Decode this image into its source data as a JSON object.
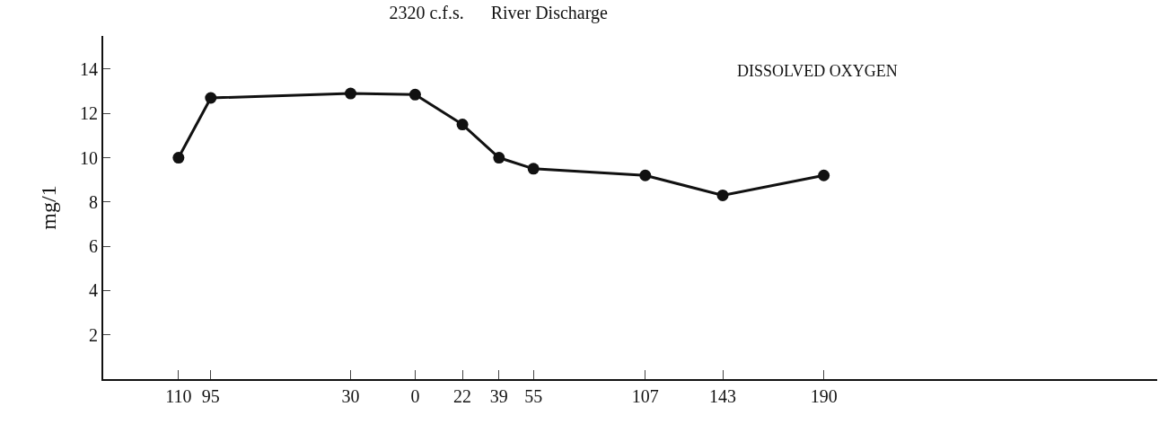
{
  "chart_data": {
    "type": "line",
    "title": "2320 c.f.s.      River Discharge",
    "ylabel": "mg/1",
    "annotations": [
      "DISSOLVED OXYGEN"
    ],
    "x": [
      -110,
      -95,
      -30,
      0,
      22,
      39,
      55,
      107,
      143,
      190
    ],
    "series": [
      {
        "color": "#111111",
        "values": [
          10,
          12.7,
          12.9,
          12.85,
          11.5,
          10,
          9.5,
          9.2,
          8.3,
          9.2
        ]
      }
    ],
    "xlim": [
      -145,
      345
    ],
    "xticks": [
      {
        "value": -110,
        "label": "110"
      },
      {
        "value": -95,
        "label": "95"
      },
      {
        "value": -30,
        "label": "30"
      },
      0,
      22,
      39,
      55,
      107,
      143,
      190
    ],
    "ylim": [
      0,
      15.5
    ],
    "yticks": [
      2,
      4,
      6,
      8,
      10,
      12,
      14
    ],
    "grid": false,
    "marker": "circle",
    "line_style": "solid"
  }
}
